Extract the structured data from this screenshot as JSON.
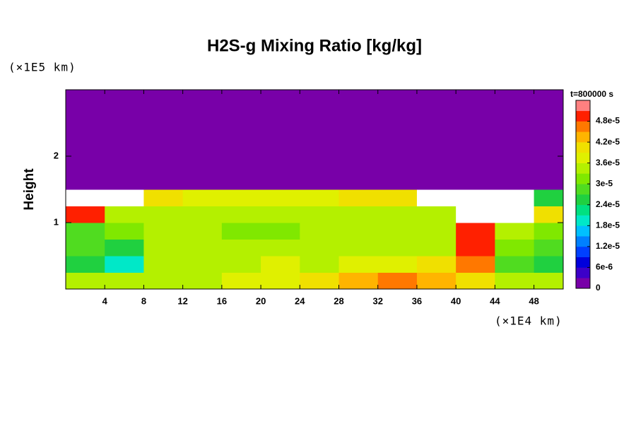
{
  "chart_data": {
    "type": "contour",
    "title": "H2S-g Mixing Ratio [kg/kg]",
    "y_label": "Height",
    "y_unit": "(×1E5 km)",
    "x_unit": "(×1E4 km)",
    "time_label": "t=800000 s",
    "xlim": [
      0,
      51
    ],
    "xticks": [
      4,
      8,
      12,
      16,
      20,
      24,
      28,
      32,
      36,
      40,
      44,
      48
    ],
    "ylim": [
      0,
      3
    ],
    "yticks": [
      1,
      2
    ],
    "x": [
      2,
      6,
      10,
      14,
      18,
      22,
      26,
      30,
      34,
      38,
      42,
      46,
      50
    ],
    "y": [
      0.125,
      0.375,
      0.625,
      0.875,
      1.125,
      1.375,
      1.625,
      1.875,
      2.125,
      2.375,
      2.625,
      2.875
    ],
    "z": [
      [
        3.3e-05,
        3.3e-05,
        3.4e-05,
        3.5e-05,
        3.6e-05,
        3.8e-05,
        4.2e-05,
        4.4e-05,
        4.5e-05,
        4.4e-05,
        4.2e-05,
        3.3e-05,
        3.3e-05
      ],
      [
        2.4e-05,
        2e-05,
        3.3e-05,
        3.3e-05,
        3.4e-05,
        3.6e-05,
        3.5e-05,
        3.6e-05,
        3.6e-05,
        3.9e-05,
        4.5e-05,
        2.7e-05,
        2.4e-05
      ],
      [
        2.7e-05,
        2.4e-05,
        3.3e-05,
        3.3e-05,
        3.3e-05,
        3.4e-05,
        3.3e-05,
        3.4e-05,
        3.4e-05,
        3.5e-05,
        4.8e-05,
        3e-05,
        2.7e-05
      ],
      [
        2.7e-05,
        3e-05,
        3.3e-05,
        3.3e-05,
        3.2e-05,
        3.2e-05,
        3.3e-05,
        3.3e-05,
        3.3e-05,
        3.4e-05,
        4.8e-05,
        3.3e-05,
        3e-05
      ],
      [
        4.8e-05,
        3.3e-05,
        3.4e-05,
        3.3e-05,
        3.3e-05,
        3.3e-05,
        3.3e-05,
        3.3e-05,
        3.3e-05,
        3.4e-05,
        5.5e-05,
        5.5e-05,
        4.2e-05
      ],
      [
        5.5e-05,
        5.5e-05,
        3.9e-05,
        3.8e-05,
        3.8e-05,
        3.8e-05,
        3.8e-05,
        3.9e-05,
        4.2e-05,
        5.5e-05,
        5.5e-05,
        5.5e-05,
        2.4e-05
      ],
      [
        0,
        0,
        0,
        0,
        0,
        0,
        0,
        0,
        0,
        0,
        0,
        0,
        0
      ],
      [
        0,
        0,
        0,
        0,
        0,
        0,
        0,
        0,
        0,
        0,
        0,
        0,
        0
      ],
      [
        0,
        0,
        0,
        0,
        0,
        0,
        0,
        0,
        0,
        0,
        0,
        0,
        0
      ],
      [
        0,
        0,
        0,
        0,
        0,
        0,
        0,
        0,
        0,
        0,
        0,
        0,
        0
      ],
      [
        0,
        0,
        0,
        0,
        0,
        0,
        0,
        0,
        0,
        0,
        0,
        0,
        0
      ],
      [
        0,
        0,
        0,
        0,
        0,
        0,
        0,
        0,
        0,
        0,
        0,
        0,
        0
      ]
    ],
    "contour_interval": 3e-06,
    "above_color": "#ffffff",
    "colors": [
      "#7800a8",
      "#3c00c8",
      "#0000dc",
      "#0040ff",
      "#0080ff",
      "#00c0ff",
      "#00e8c8",
      "#00e080",
      "#20d040",
      "#50dc20",
      "#80e800",
      "#b4f000",
      "#e0f000",
      "#f0e000",
      "#ffb400",
      "#ff7800",
      "#ff2000",
      "#ff8080"
    ],
    "clim": [
      0,
      5.4e-05
    ],
    "cticks": [
      0,
      {
        "value": 6e-06,
        "label": "6e-6"
      },
      {
        "value": 1.2e-05,
        "label": "1.2e-5"
      },
      {
        "value": 1.8e-05,
        "label": "1.8e-5"
      },
      {
        "value": 2.4e-05,
        "label": "2.4e-5"
      },
      {
        "value": 3e-05,
        "label": "3e-5"
      },
      {
        "value": 3.6e-05,
        "label": "3.6e-5"
      },
      {
        "value": 4.2e-05,
        "label": "4.2e-5"
      },
      {
        "value": 4.8e-05,
        "label": "4.8e-5"
      }
    ]
  }
}
